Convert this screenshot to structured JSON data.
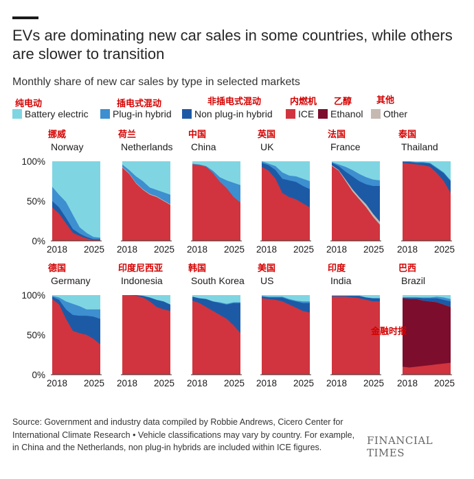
{
  "title": "EVs are dominating new car sales in some countries, while others are slower to transition",
  "subtitle": "Monthly share of new car sales by type in selected markets",
  "legend_zh": [
    "纯电动",
    "插电式混动",
    "非插电式混动",
    "内燃机",
    "乙醇",
    "其他"
  ],
  "colors": {
    "bev": "#7fd6e2",
    "phev": "#3d8fd0",
    "hev": "#1d5aa6",
    "ice": "#d1343e",
    "ethanol": "#7d0d2c",
    "other": "#c5b9b2",
    "axis": "#333333"
  },
  "footer": {
    "source": "Source: Government and industry data compiled by Robbie Andrews, Cicero Center for International Climate Research • Vehicle classifications may vary by country. For example, in China and the Netherlands, non plug-in hybrids are included within ICE figures.",
    "brand": "FINANCIAL TIMES",
    "watermark": "金融时报"
  },
  "chart_data": {
    "type": "area",
    "stacked": true,
    "x": [
      2018,
      2019,
      2020,
      2021,
      2022,
      2023,
      2024,
      2025
    ],
    "xticks": [
      "2018",
      "2025"
    ],
    "yticks": [
      "0%",
      "50%",
      "100%"
    ],
    "ylim": [
      0,
      100
    ],
    "series_order": [
      "ice",
      "ethanol",
      "other",
      "hev",
      "phev",
      "bev"
    ],
    "series": [
      {
        "key": "bev",
        "name": "Battery electric"
      },
      {
        "key": "phev",
        "name": "Plug-in hybrid"
      },
      {
        "key": "hev",
        "name": "Non plug-in hybrid"
      },
      {
        "key": "ice",
        "name": "ICE"
      },
      {
        "key": "ethanol",
        "name": "Ethanol"
      },
      {
        "key": "other",
        "name": "Other"
      }
    ],
    "panels": [
      {
        "name": "Norway",
        "name_zh": "挪威",
        "ice": [
          42,
          34,
          22,
          10,
          6,
          3,
          1,
          1
        ],
        "ethanol": [
          0,
          0,
          0,
          0,
          0,
          0,
          0,
          0
        ],
        "other": [
          0,
          0,
          0,
          0,
          0,
          0,
          0,
          0
        ],
        "hev": [
          8,
          8,
          7,
          5,
          3,
          2,
          1,
          1
        ],
        "phev": [
          18,
          16,
          20,
          18,
          8,
          5,
          3,
          2
        ]
      },
      {
        "name": "Netherlands",
        "name_zh": "荷兰",
        "ice": [
          92,
          84,
          72,
          64,
          58,
          55,
          50,
          45
        ],
        "ethanol": [
          0,
          0,
          0,
          0,
          0,
          0,
          0,
          0
        ],
        "other": [
          1,
          1,
          1,
          1,
          1,
          1,
          1,
          1
        ],
        "hev": [
          0,
          0,
          0,
          0,
          0,
          0,
          0,
          0
        ],
        "phev": [
          3,
          4,
          8,
          10,
          8,
          8,
          10,
          12
        ]
      },
      {
        "name": "China",
        "name_zh": "中国",
        "ice": [
          96,
          95,
          93,
          85,
          74,
          66,
          55,
          48
        ],
        "ethanol": [
          0,
          0,
          0,
          0,
          0,
          0,
          0,
          0
        ],
        "other": [
          0,
          0,
          0,
          0,
          0,
          0,
          0,
          0
        ],
        "hev": [
          0,
          0,
          0,
          0,
          0,
          0,
          0,
          0
        ],
        "phev": [
          1,
          1,
          1,
          3,
          6,
          10,
          18,
          22
        ]
      },
      {
        "name": "UK",
        "name_zh": "英国",
        "ice": [
          93,
          88,
          78,
          60,
          55,
          52,
          47,
          42
        ],
        "ethanol": [
          0,
          0,
          0,
          0,
          0,
          0,
          0,
          0
        ],
        "other": [
          0,
          0,
          0,
          0,
          0,
          0,
          0,
          0
        ],
        "hev": [
          5,
          7,
          11,
          18,
          21,
          22,
          22,
          23
        ],
        "phev": [
          2,
          2,
          5,
          8,
          6,
          7,
          9,
          10
        ]
      },
      {
        "name": "France",
        "name_zh": "法国",
        "ice": [
          94,
          88,
          75,
          62,
          52,
          42,
          30,
          20
        ],
        "ethanol": [
          0,
          0,
          0,
          0,
          0,
          0,
          0,
          0
        ],
        "other": [
          1,
          1,
          2,
          3,
          3,
          4,
          4,
          4
        ],
        "hev": [
          3,
          5,
          10,
          16,
          20,
          25,
          35,
          45
        ],
        "phev": [
          1,
          2,
          6,
          8,
          9,
          9,
          8,
          7
        ]
      },
      {
        "name": "Thailand",
        "name_zh": "泰国",
        "ice": [
          98,
          97,
          96,
          95,
          93,
          85,
          75,
          60
        ],
        "ethanol": [
          0,
          0,
          0,
          0,
          0,
          0,
          0,
          0
        ],
        "other": [
          0,
          0,
          0,
          0,
          0,
          0,
          0,
          0
        ],
        "hev": [
          1,
          2,
          2,
          3,
          4,
          6,
          10,
          15
        ],
        "phev": [
          1,
          1,
          1,
          1,
          1,
          1,
          1,
          1
        ]
      },
      {
        "name": "Germany",
        "name_zh": "德国",
        "ice": [
          95,
          88,
          70,
          55,
          52,
          50,
          45,
          38
        ],
        "ethanol": [
          0,
          0,
          0,
          0,
          0,
          0,
          0,
          0
        ],
        "other": [
          0,
          0,
          0,
          0,
          0,
          0,
          0,
          0
        ],
        "hev": [
          3,
          6,
          12,
          20,
          22,
          24,
          28,
          32
        ],
        "phev": [
          1,
          3,
          10,
          14,
          12,
          8,
          9,
          12
        ]
      },
      {
        "name": "Indonesia",
        "name_zh": "印度尼西亚",
        "ice": [
          100,
          100,
          99,
          97,
          92,
          85,
          82,
          80
        ],
        "ethanol": [
          0,
          0,
          0,
          0,
          0,
          0,
          0,
          0
        ],
        "other": [
          0,
          0,
          0,
          0,
          0,
          0,
          0,
          0
        ],
        "hev": [
          0,
          0,
          1,
          2,
          5,
          9,
          10,
          8
        ],
        "phev": [
          0,
          0,
          0,
          0,
          0,
          0,
          0,
          0
        ]
      },
      {
        "name": "South Korea",
        "name_zh": "韩国",
        "ice": [
          93,
          90,
          85,
          80,
          75,
          70,
          62,
          52
        ],
        "ethanol": [
          0,
          0,
          0,
          0,
          0,
          0,
          0,
          0
        ],
        "other": [
          0,
          0,
          0,
          0,
          0,
          0,
          0,
          0
        ],
        "hev": [
          5,
          6,
          10,
          12,
          15,
          18,
          28,
          38
        ],
        "phev": [
          0,
          0,
          0,
          0,
          1,
          1,
          1,
          1
        ]
      },
      {
        "name": "US",
        "name_zh": "美国",
        "ice": [
          96,
          95,
          94,
          92,
          88,
          84,
          80,
          78
        ],
        "ethanol": [
          0,
          0,
          0,
          0,
          0,
          0,
          0,
          0
        ],
        "other": [
          0,
          0,
          0,
          0,
          0,
          0,
          0,
          0
        ],
        "hev": [
          2,
          2,
          3,
          5,
          6,
          8,
          10,
          12
        ],
        "phev": [
          1,
          1,
          1,
          1,
          1,
          1,
          2,
          2
        ]
      },
      {
        "name": "India",
        "name_zh": "印度",
        "ice": [
          98,
          98,
          98,
          97,
          96,
          94,
          92,
          92
        ],
        "ethanol": [
          0,
          0,
          0,
          0,
          0,
          0,
          0,
          0
        ],
        "other": [
          0,
          0,
          0,
          0,
          0,
          0,
          0,
          0
        ],
        "hev": [
          1,
          1,
          1,
          2,
          3,
          3,
          4,
          4
        ],
        "phev": [
          0,
          0,
          0,
          0,
          0,
          0,
          0,
          0
        ]
      },
      {
        "name": "Brazil",
        "name_zh": "巴西",
        "ice": [
          10,
          9,
          10,
          11,
          12,
          13,
          14,
          15
        ],
        "ethanol": [
          86,
          86,
          85,
          82,
          80,
          78,
          74,
          70
        ],
        "other": [
          0,
          0,
          0,
          0,
          0,
          0,
          0,
          0
        ],
        "hev": [
          1,
          2,
          2,
          3,
          4,
          5,
          6,
          7
        ],
        "phev": [
          0,
          0,
          0,
          1,
          1,
          2,
          3,
          3
        ]
      }
    ]
  }
}
